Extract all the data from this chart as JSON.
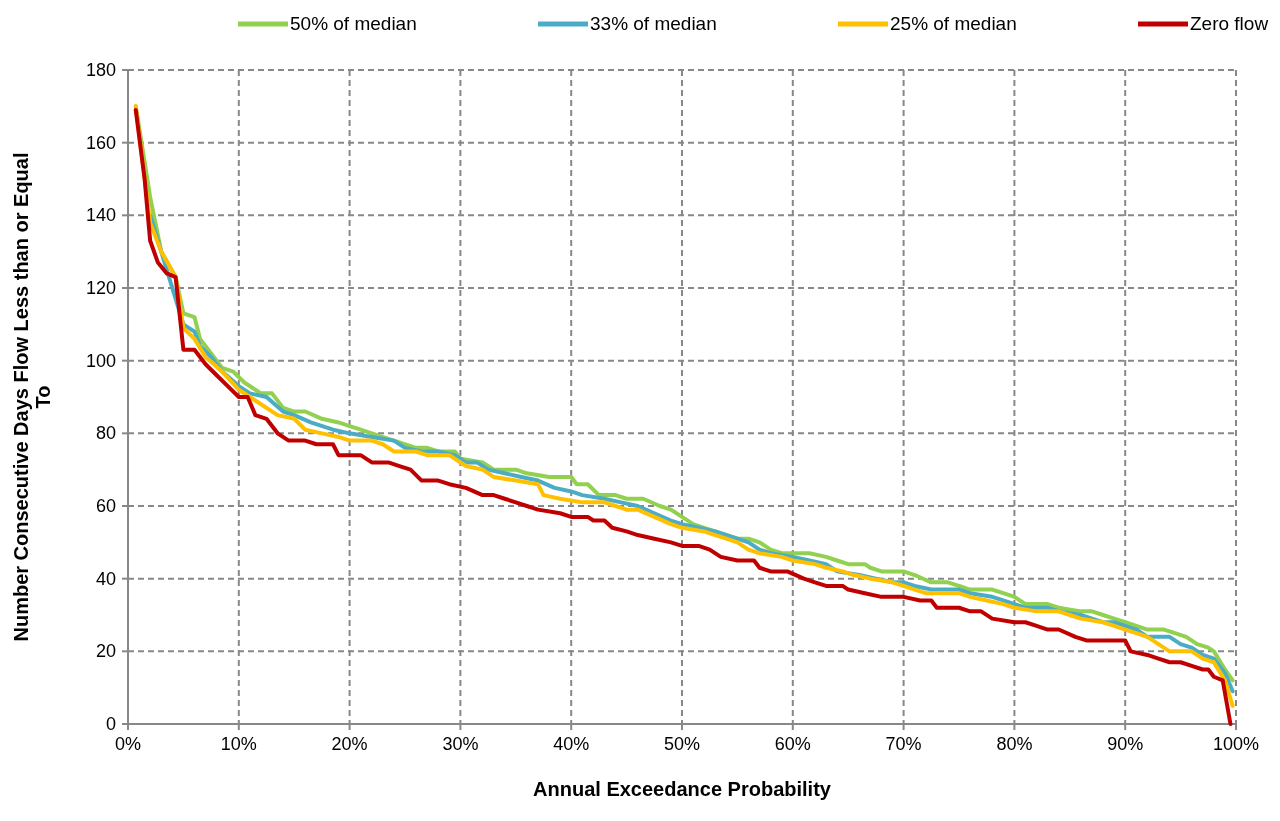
{
  "chart_data": {
    "type": "line",
    "xlabel": "Annual Exceedance Probability",
    "ylabel": "Number Consecutive Days Flow Less than or Equal To",
    "xlim": [
      0,
      100
    ],
    "ylim": [
      0,
      180
    ],
    "xticks": [
      {
        "value": 0,
        "label": "0%"
      },
      {
        "value": 10,
        "label": "10%"
      },
      {
        "value": 20,
        "label": "20%"
      },
      {
        "value": 30,
        "label": "30%"
      },
      {
        "value": 40,
        "label": "40%"
      },
      {
        "value": 50,
        "label": "50%"
      },
      {
        "value": 60,
        "label": "60%"
      },
      {
        "value": 70,
        "label": "70%"
      },
      {
        "value": 80,
        "label": "80%"
      },
      {
        "value": 90,
        "label": "90%"
      },
      {
        "value": 100,
        "label": "100%"
      }
    ],
    "yticks": [
      0,
      20,
      40,
      60,
      80,
      100,
      120,
      140,
      160,
      180
    ],
    "grid": true,
    "legend": "top",
    "marker": "none",
    "line_style": "solid",
    "series": [
      {
        "name": "50% of median",
        "color": "#92d050",
        "x": [
          0.7,
          2,
          3,
          4.3,
          5,
          6,
          6.5,
          7.5,
          8.5,
          9.5,
          10.5,
          12,
          13,
          14,
          15,
          16,
          17.5,
          19,
          20,
          21,
          22,
          24,
          26,
          27,
          28,
          29.5,
          30,
          32,
          33,
          35,
          36,
          38,
          40,
          40.5,
          41.5,
          42.5,
          44,
          45,
          46.5,
          48,
          49,
          50,
          51,
          52,
          53,
          54,
          55,
          56,
          57,
          58,
          59,
          60,
          61.5,
          63,
          64,
          65,
          66.5,
          67,
          68,
          70,
          71,
          72.5,
          74,
          75,
          76,
          78,
          79,
          80,
          81,
          83,
          84,
          86,
          87,
          88,
          89,
          90,
          91,
          92,
          93.5,
          94.5,
          95.5,
          96.5,
          97.5,
          98,
          99,
          99.7
        ],
        "values": [
          170,
          145,
          130,
          123,
          113,
          112,
          106,
          102,
          98,
          97,
          94,
          91,
          91,
          87,
          86,
          86,
          84,
          83,
          82,
          81,
          80,
          78,
          76,
          76,
          75,
          75,
          73,
          72,
          70,
          70,
          69,
          68,
          68,
          66,
          66,
          63,
          63,
          62,
          62,
          60,
          59,
          57,
          55,
          54,
          53,
          52,
          51,
          51,
          50,
          48,
          47,
          47,
          47,
          46,
          45,
          44,
          44,
          43,
          42,
          42,
          41,
          39,
          39,
          38,
          37,
          37,
          36,
          35,
          33,
          33,
          32,
          31,
          31,
          30,
          29,
          28,
          27,
          26,
          26,
          25,
          24,
          22,
          21,
          20,
          15,
          12
        ]
      },
      {
        "name": "33% of median",
        "color": "#4bacc6",
        "x": [
          2,
          3,
          5,
          6,
          6.5,
          7.5,
          8.5,
          10,
          11,
          12.5,
          14,
          15,
          16.5,
          18.5,
          20,
          22,
          24,
          25,
          26.5,
          28,
          29.5,
          30.5,
          31.5,
          32.5,
          34,
          35.5,
          37,
          38.5,
          40,
          41,
          43,
          44.5,
          46,
          47.5,
          49,
          50,
          51.5,
          53,
          55,
          56,
          57,
          58,
          60,
          61.5,
          63,
          64,
          66,
          67.5,
          69,
          70,
          71,
          72.5,
          75,
          76,
          78,
          79,
          80,
          81,
          83,
          84,
          86,
          87,
          88,
          89,
          90,
          91,
          92,
          94,
          95,
          96,
          97,
          98,
          99,
          99.7
        ],
        "values": [
          140,
          130,
          110,
          108,
          104,
          101,
          97,
          93,
          91,
          90,
          86,
          85,
          83,
          81,
          80,
          79,
          78,
          76,
          75,
          75,
          74,
          72,
          72,
          70,
          69,
          68,
          67,
          65,
          64,
          63,
          62,
          61,
          60,
          58,
          56,
          55,
          54,
          53,
          51,
          50,
          48,
          47,
          46,
          45,
          44,
          42,
          41,
          40,
          39,
          39,
          38,
          37,
          37,
          36,
          35,
          34,
          33,
          32,
          32,
          31,
          30,
          29,
          28,
          28,
          27,
          26,
          24,
          24,
          22,
          21,
          19,
          18,
          14,
          9
        ]
      },
      {
        "name": "25% of median",
        "color": "#ffc000",
        "x": [
          0.7,
          2,
          3,
          4.3,
          5,
          6,
          7,
          8.5,
          10,
          11,
          12,
          13.5,
          15,
          16,
          17.5,
          19,
          20,
          22,
          23,
          24,
          26,
          27,
          29,
          30.5,
          32,
          33,
          35,
          37,
          37.5,
          39,
          41,
          43,
          44,
          45,
          46,
          47.5,
          49,
          50,
          52,
          53,
          54,
          55,
          56,
          57,
          59,
          60,
          62,
          63,
          64.5,
          65.5,
          67,
          69,
          70,
          71,
          72,
          75,
          76,
          77.5,
          79,
          80,
          82,
          84,
          85,
          86,
          88,
          89,
          90,
          91,
          92,
          93,
          94,
          96,
          97,
          98,
          99,
          99.7
        ],
        "values": [
          170,
          138,
          130,
          123,
          109,
          106,
          101,
          97,
          92,
          90,
          88,
          85,
          84,
          81,
          80,
          79,
          78,
          78,
          77,
          75,
          75,
          74,
          74,
          71,
          70,
          68,
          67,
          66,
          63,
          62,
          61,
          61,
          60,
          59,
          59,
          57,
          55,
          54,
          53,
          52,
          51,
          50,
          48,
          47,
          46,
          45,
          44,
          43,
          42,
          41,
          40,
          39,
          38,
          37,
          36,
          36,
          35,
          34,
          33,
          32,
          31,
          31,
          30,
          29,
          28,
          27,
          26,
          25,
          24,
          22,
          20,
          20,
          18,
          17,
          12,
          5
        ]
      },
      {
        "name": "Zero flow",
        "color": "#c00000",
        "x": [
          0.7,
          1.5,
          2,
          2.7,
          3.5,
          4.3,
          5,
          6,
          7,
          8,
          9,
          10,
          10.8,
          11.5,
          12.5,
          13.5,
          14.5,
          16,
          17,
          18.5,
          19,
          21,
          22,
          23.5,
          24.5,
          25.5,
          26.5,
          28,
          29,
          30.5,
          32,
          33,
          34,
          35,
          36,
          37,
          39,
          40,
          41.5,
          42,
          43,
          43.7,
          45,
          46,
          47.5,
          49,
          50,
          51.5,
          52.5,
          53.5,
          55,
          56.5,
          57,
          58,
          59.5,
          61,
          62,
          63,
          64.5,
          65,
          66.5,
          68,
          70,
          71.5,
          72.5,
          73,
          75,
          76,
          77,
          78,
          80,
          81,
          82,
          83,
          84,
          85.5,
          86.5,
          89,
          90,
          90.5,
          92,
          93,
          94,
          95,
          96,
          97,
          97.5,
          98,
          98.8,
          99.5
        ],
        "values": [
          169,
          150,
          133,
          127,
          124,
          123,
          103,
          103,
          99,
          96,
          93,
          90,
          90,
          85,
          84,
          80,
          78,
          78,
          77,
          77,
          74,
          74,
          72,
          72,
          71,
          70,
          67,
          67,
          66,
          65,
          63,
          63,
          62,
          61,
          60,
          59,
          58,
          57,
          57,
          56,
          56,
          54,
          53,
          52,
          51,
          50,
          49,
          49,
          48,
          46,
          45,
          45,
          43,
          42,
          42,
          40,
          39,
          38,
          38,
          37,
          36,
          35,
          35,
          34,
          34,
          32,
          32,
          31,
          31,
          29,
          28,
          28,
          27,
          26,
          26,
          24,
          23,
          23,
          23,
          20,
          19,
          18,
          17,
          17,
          16,
          15,
          15,
          13,
          12,
          0
        ]
      }
    ]
  }
}
